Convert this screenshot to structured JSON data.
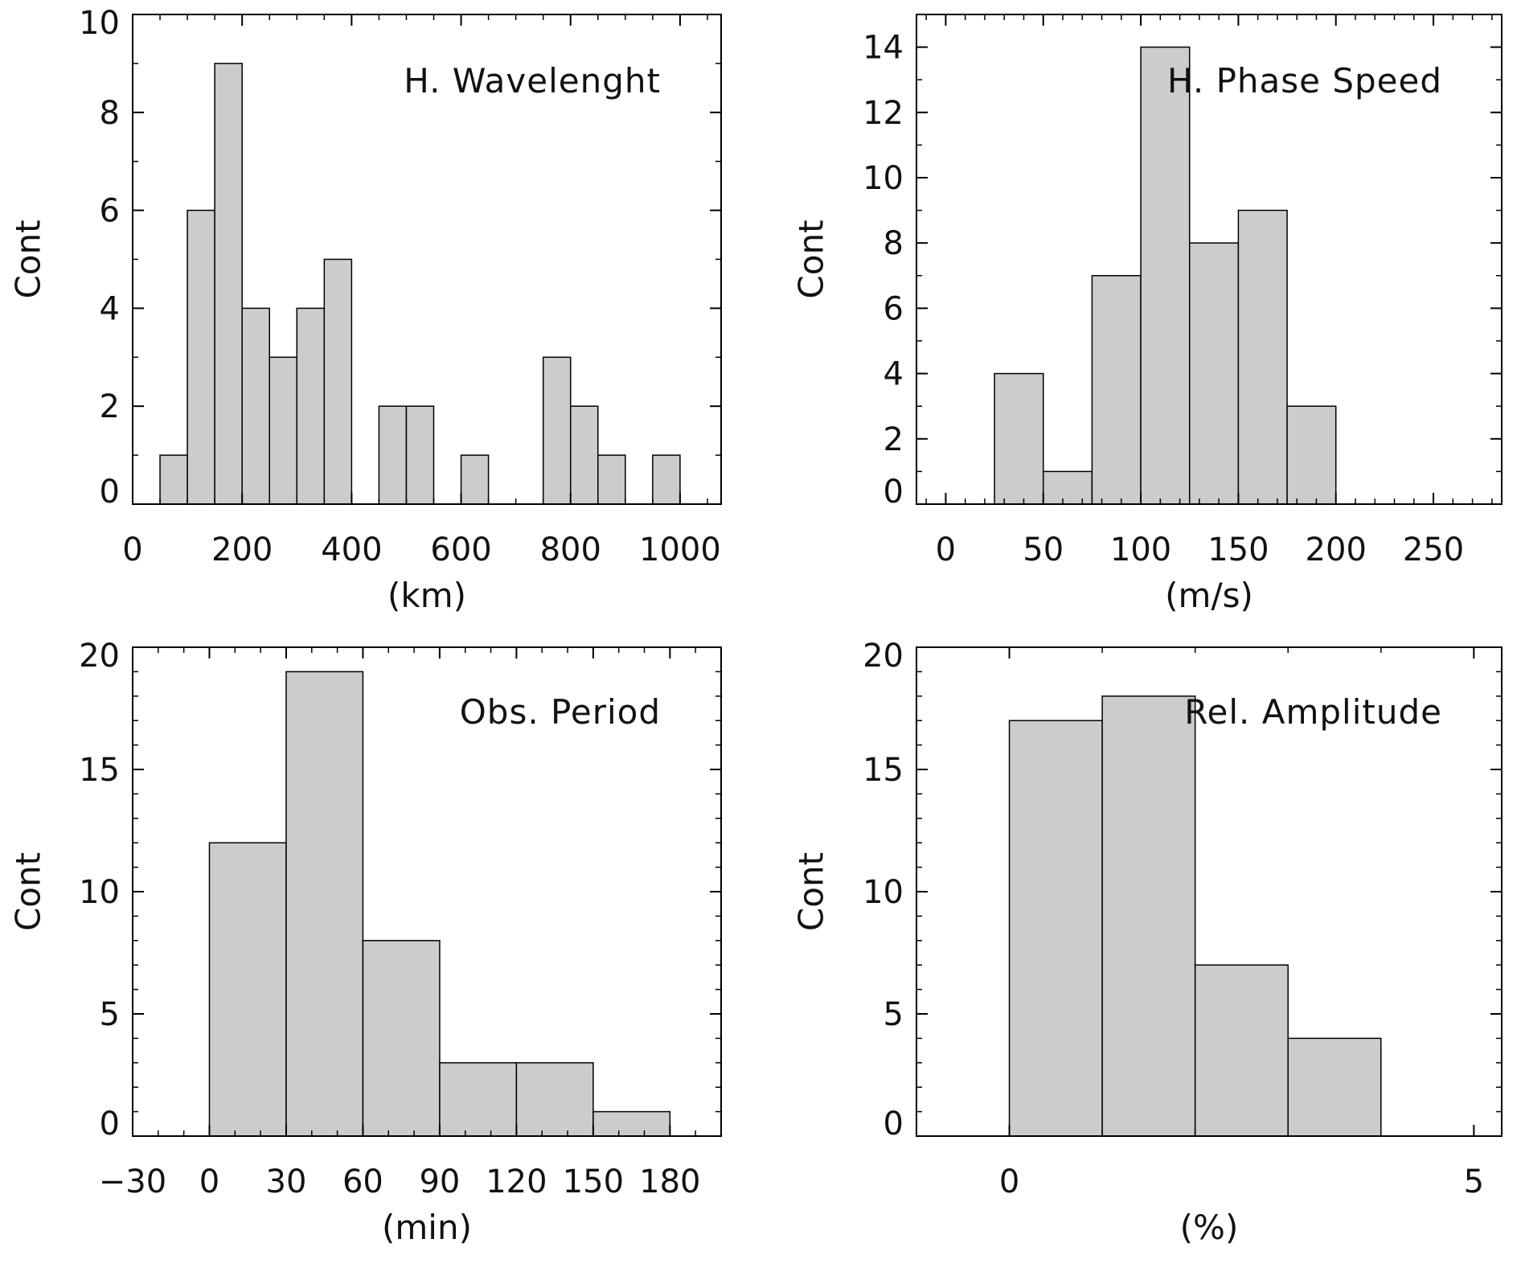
{
  "colors": {
    "bar_fill": "#cccccc",
    "bar_stroke": "#000000",
    "axis": "#000000",
    "background": "#ffffff"
  },
  "chart_data": [
    {
      "type": "bar",
      "title": "H. Wavelenght",
      "xlabel": "(km)",
      "ylabel": "Cont",
      "xlim": [
        0,
        1075
      ],
      "ylim": [
        0,
        10
      ],
      "xticks": [
        0,
        200,
        400,
        600,
        800,
        1000
      ],
      "yticks": [
        0,
        2,
        4,
        6,
        8,
        10
      ],
      "xminor": 50,
      "yminor": 1,
      "bin_width": 50,
      "bins": [
        {
          "start": 50,
          "count": 1
        },
        {
          "start": 100,
          "count": 6
        },
        {
          "start": 150,
          "count": 9
        },
        {
          "start": 200,
          "count": 4
        },
        {
          "start": 250,
          "count": 3
        },
        {
          "start": 300,
          "count": 4
        },
        {
          "start": 350,
          "count": 5
        },
        {
          "start": 450,
          "count": 2
        },
        {
          "start": 500,
          "count": 2
        },
        {
          "start": 600,
          "count": 1
        },
        {
          "start": 750,
          "count": 3
        },
        {
          "start": 800,
          "count": 2
        },
        {
          "start": 850,
          "count": 1
        },
        {
          "start": 950,
          "count": 1
        }
      ]
    },
    {
      "type": "bar",
      "title": "H. Phase Speed",
      "xlabel": "(m/s)",
      "ylabel": "Cont",
      "xlim": [
        -15,
        285
      ],
      "ylim": [
        0,
        15
      ],
      "xticks": [
        0,
        50,
        100,
        150,
        200,
        250
      ],
      "yticks": [
        0,
        2,
        4,
        6,
        8,
        10,
        12,
        14
      ],
      "xminor": 10,
      "yminor": 1,
      "bin_width": 25,
      "bins": [
        {
          "start": 25,
          "count": 4
        },
        {
          "start": 50,
          "count": 1
        },
        {
          "start": 75,
          "count": 7
        },
        {
          "start": 100,
          "count": 14
        },
        {
          "start": 125,
          "count": 8
        },
        {
          "start": 150,
          "count": 9
        },
        {
          "start": 175,
          "count": 3
        }
      ]
    },
    {
      "type": "bar",
      "title": "Obs. Period",
      "xlabel": "(min)",
      "ylabel": "Cont",
      "xlim": [
        -30,
        200
      ],
      "ylim": [
        0,
        20
      ],
      "xticks": [
        -30,
        0,
        30,
        60,
        90,
        120,
        150,
        180
      ],
      "xtick_labels": [
        "−30",
        "0",
        "30",
        "60",
        "90",
        "120",
        "150",
        "180"
      ],
      "yticks": [
        0,
        5,
        10,
        15,
        20
      ],
      "xminor": 10,
      "yminor": 1,
      "bin_width": 30,
      "bins": [
        {
          "start": 0,
          "count": 12
        },
        {
          "start": 30,
          "count": 19
        },
        {
          "start": 60,
          "count": 8
        },
        {
          "start": 90,
          "count": 3
        },
        {
          "start": 120,
          "count": 3
        },
        {
          "start": 150,
          "count": 1
        }
      ]
    },
    {
      "type": "bar",
      "title": "Rel. Amplitude",
      "xlabel": "(%)",
      "ylabel": "Cont",
      "xlim": [
        -1,
        5.3
      ],
      "ylim": [
        0,
        20
      ],
      "xticks": [
        0,
        5
      ],
      "yticks": [
        0,
        5,
        10,
        15,
        20
      ],
      "xminor": 1,
      "yminor": 1,
      "bin_width": 1,
      "bins": [
        {
          "start": 0,
          "count": 17
        },
        {
          "start": 1,
          "count": 18
        },
        {
          "start": 2,
          "count": 7
        },
        {
          "start": 3,
          "count": 4
        }
      ]
    }
  ]
}
